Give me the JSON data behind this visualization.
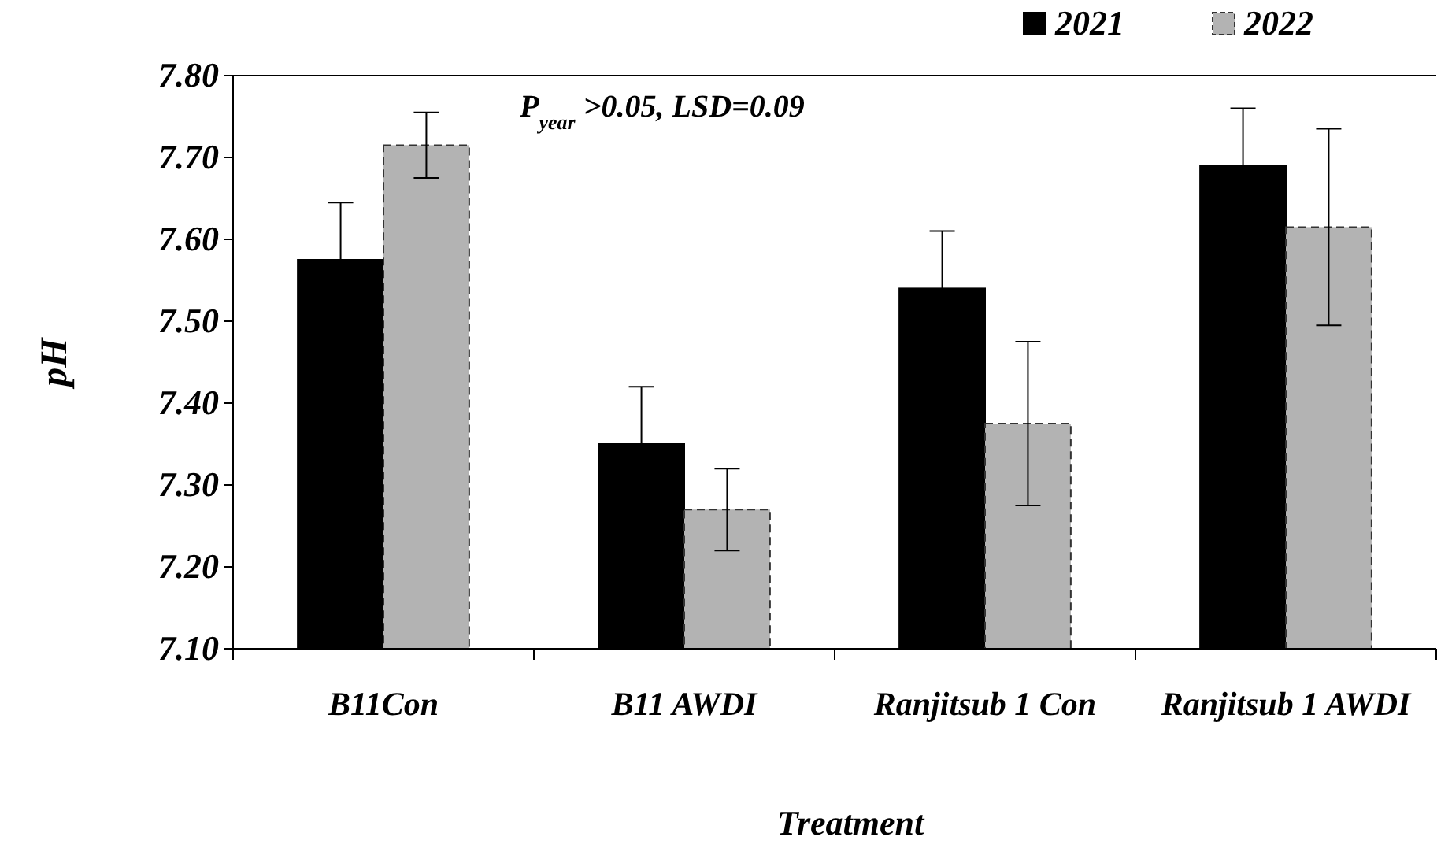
{
  "chart_data": {
    "type": "bar",
    "xlabel": "Treatment",
    "ylabel": "pH",
    "categories": [
      "B11Con",
      "B11 AWDI",
      "Ranjitsub 1 Con",
      "Ranjitsub 1 AWDI"
    ],
    "series": [
      {
        "name": "2021",
        "color": "#000000",
        "values": [
          7.575,
          7.35,
          7.54,
          7.69
        ],
        "errors": [
          0.07,
          0.07,
          0.07,
          0.07
        ]
      },
      {
        "name": "2022",
        "color": "#b3b3b3",
        "values": [
          7.715,
          7.27,
          7.375,
          7.615
        ],
        "errors": [
          0.04,
          0.05,
          0.1,
          0.12
        ]
      }
    ],
    "ylim": [
      7.1,
      7.8
    ],
    "yticks": [
      {
        "value": 7.1,
        "label": "7.10"
      },
      {
        "value": 7.2,
        "label": "7.20"
      },
      {
        "value": 7.3,
        "label": "7.30"
      },
      {
        "value": 7.4,
        "label": "7.40"
      },
      {
        "value": 7.5,
        "label": "7.50"
      },
      {
        "value": 7.6,
        "label": "7.60"
      },
      {
        "value": 7.7,
        "label": "7.70"
      },
      {
        "value": 7.8,
        "label": "7.80"
      }
    ],
    "annotations": [
      "P$_{year}$ >0.05, LSD=0.09"
    ],
    "legend": "top right",
    "grid": false
  }
}
